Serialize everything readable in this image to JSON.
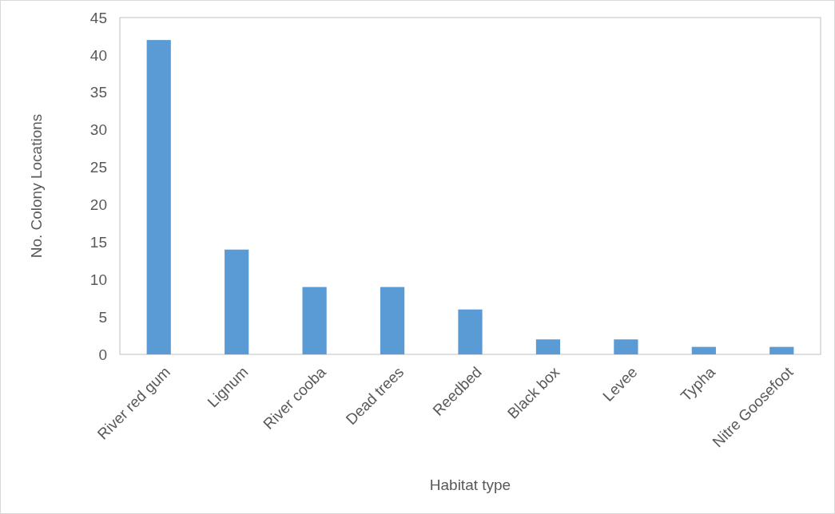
{
  "chart_data": {
    "type": "bar",
    "xlabel": "Habitat type",
    "ylabel": "No. Colony Locations",
    "categories": [
      "River red gum",
      "Lignum",
      "River cooba",
      "Dead trees",
      "Reedbed",
      "Black box",
      "Levee",
      "Typha",
      "Nitre Goosefoot"
    ],
    "values": [
      42,
      14,
      9,
      9,
      6,
      2,
      2,
      1,
      1
    ],
    "color": "#5b9bd5",
    "ylim": [
      0,
      45
    ],
    "yticks": [
      0,
      5,
      10,
      15,
      20,
      25,
      30,
      35,
      40,
      45
    ],
    "grid": false
  }
}
